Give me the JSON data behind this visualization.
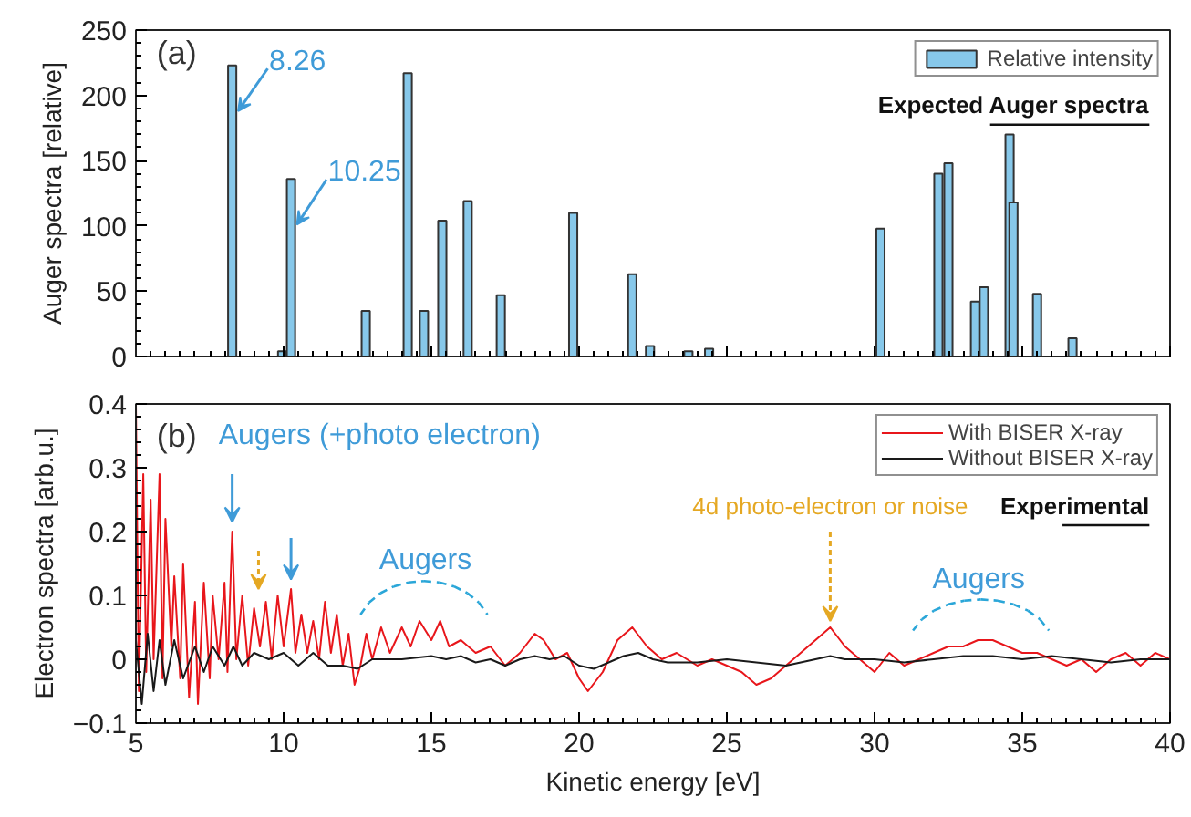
{
  "chart_data": [
    {
      "type": "bar",
      "ylabel": "Auger spectra [relative]",
      "xlim": [
        5,
        40
      ],
      "xticks": [
        5,
        10,
        15,
        20,
        25,
        30,
        35,
        40
      ],
      "ylim": [
        0,
        250
      ],
      "yticks": [
        0,
        50,
        100,
        150,
        200,
        250
      ],
      "tick_labels": "y",
      "legend": "top right",
      "grid": false,
      "x": [
        8.26,
        9.95,
        10.25,
        12.78,
        14.2,
        14.75,
        15.37,
        16.23,
        17.35,
        19.8,
        21.8,
        22.4,
        23.7,
        24.4,
        30.2,
        32.16,
        32.5,
        33.4,
        33.7,
        34.57,
        34.7,
        35.5,
        36.7
      ],
      "series": [
        {
          "name": "Relative intensity",
          "color": "#87c8ea",
          "values": [
            223,
            4,
            136,
            35,
            217,
            35,
            104,
            119,
            47,
            110,
            63,
            8,
            4,
            6,
            98,
            140,
            148,
            42,
            53,
            170,
            118,
            48,
            14
          ]
        }
      ],
      "annotations": [
        "(a)",
        {
          "text": "8.26",
          "x": 8.26,
          "y": 223
        },
        {
          "text": "10.25",
          "x": 10.25,
          "y": 136
        },
        "Expected Auger spectra"
      ]
    },
    {
      "type": "line",
      "xlabel": "Kinetic energy [eV]",
      "ylabel": "Electron spectra [arb.u.]",
      "xlim": [
        5,
        40
      ],
      "xticks": [
        5,
        10,
        15,
        20,
        25,
        30,
        35,
        40
      ],
      "ylim": [
        -0.1,
        0.4
      ],
      "yticks": [
        -0.1,
        0,
        0.1,
        0.2,
        0.3,
        0.4
      ],
      "legend": "top right",
      "grid": false,
      "series": [
        {
          "name": "With BISER X-ray",
          "color": "#e8161b",
          "x": [
            5.0,
            5.1,
            5.25,
            5.35,
            5.5,
            5.6,
            5.8,
            5.9,
            6.0,
            6.2,
            6.3,
            6.5,
            6.6,
            6.8,
            7.0,
            7.1,
            7.3,
            7.5,
            7.6,
            7.8,
            8.0,
            8.1,
            8.26,
            8.4,
            8.6,
            8.8,
            9.0,
            9.2,
            9.4,
            9.6,
            9.8,
            10.0,
            10.25,
            10.4,
            10.6,
            10.8,
            11.0,
            11.2,
            11.4,
            11.6,
            11.8,
            12.0,
            12.2,
            12.4,
            12.6,
            12.8,
            13.0,
            13.3,
            13.6,
            14.0,
            14.3,
            14.6,
            15.0,
            15.3,
            15.6,
            16.0,
            16.5,
            17.0,
            17.5,
            18.0,
            18.5,
            18.8,
            19.2,
            19.6,
            20.0,
            20.3,
            20.8,
            21.3,
            21.8,
            22.3,
            22.8,
            23.3,
            24.0,
            24.5,
            25.0,
            25.5,
            26.0,
            26.5,
            27.0,
            27.5,
            28.0,
            28.5,
            29.0,
            29.5,
            30.0,
            30.5,
            31.0,
            31.5,
            32.0,
            32.5,
            33.0,
            33.5,
            34.0,
            34.5,
            35.0,
            35.5,
            36.0,
            36.5,
            37.0,
            37.5,
            38.0,
            38.5,
            39.0,
            39.5,
            40.0
          ],
          "values": [
            0.4,
            -0.05,
            0.29,
            -0.02,
            0.25,
            0.0,
            0.29,
            -0.03,
            0.22,
            0.02,
            0.13,
            -0.03,
            0.15,
            -0.06,
            0.09,
            -0.07,
            0.12,
            -0.03,
            0.1,
            0.0,
            0.12,
            -0.02,
            0.2,
            0.0,
            0.1,
            -0.01,
            0.08,
            0.02,
            0.09,
            0.0,
            0.1,
            0.02,
            0.11,
            0.01,
            0.07,
            0.01,
            0.06,
            0.0,
            0.09,
            0.01,
            0.07,
            -0.01,
            0.04,
            -0.04,
            -0.01,
            0.04,
            0.0,
            0.05,
            0.01,
            0.05,
            0.02,
            0.06,
            0.03,
            0.06,
            0.02,
            0.03,
            0.01,
            0.02,
            -0.01,
            0.01,
            0.04,
            0.03,
            0.0,
            0.01,
            -0.03,
            -0.05,
            -0.02,
            0.03,
            0.05,
            0.02,
            0.0,
            0.01,
            -0.01,
            0.0,
            -0.01,
            -0.02,
            -0.04,
            -0.03,
            -0.01,
            0.01,
            0.03,
            0.05,
            0.02,
            0.0,
            -0.02,
            0.01,
            -0.01,
            0.0,
            0.01,
            0.02,
            0.02,
            0.03,
            0.03,
            0.02,
            0.01,
            0.01,
            0.0,
            -0.01,
            0.0,
            -0.02,
            0.0,
            0.01,
            -0.01,
            0.01,
            0.0
          ]
        },
        {
          "name": "Without BISER X-ray",
          "color": "#1a1a1a",
          "x": [
            5.0,
            5.2,
            5.4,
            5.6,
            5.8,
            6.0,
            6.3,
            6.6,
            7.0,
            7.3,
            7.6,
            8.0,
            8.3,
            8.6,
            9.0,
            9.5,
            10.0,
            10.5,
            11.0,
            11.5,
            12.0,
            12.5,
            13.0,
            14.0,
            15.0,
            15.5,
            16.0,
            16.5,
            17.0,
            17.5,
            18.0,
            18.5,
            19.0,
            19.5,
            20.0,
            20.5,
            21.0,
            21.5,
            22.0,
            22.5,
            23.0,
            24.0,
            25.0,
            26.0,
            27.0,
            27.5,
            28.0,
            28.5,
            29.0,
            30.0,
            31.0,
            32.0,
            33.0,
            34.0,
            35.0,
            36.0,
            37.0,
            38.0,
            39.0,
            40.0
          ],
          "values": [
            0.03,
            -0.07,
            0.04,
            -0.05,
            0.03,
            -0.04,
            0.03,
            -0.03,
            0.02,
            -0.02,
            0.02,
            -0.01,
            0.02,
            -0.01,
            0.01,
            0.0,
            0.01,
            -0.01,
            0.01,
            -0.01,
            -0.01,
            -0.015,
            0.0,
            0.0,
            0.005,
            0.0,
            0.005,
            -0.005,
            0.0,
            -0.01,
            0.0,
            0.005,
            0.0,
            0.005,
            -0.01,
            -0.015,
            -0.005,
            0.005,
            0.01,
            0.0,
            -0.005,
            -0.005,
            0.0,
            -0.005,
            -0.01,
            -0.005,
            0.0,
            0.005,
            0.0,
            0.0,
            -0.005,
            0.0,
            0.005,
            0.005,
            0.0,
            0.005,
            0.0,
            -0.005,
            0.0,
            0.0
          ]
        }
      ],
      "annotations": [
        "(b)",
        "Augers (+photo electron)",
        "Augers",
        {
          "text": "4d photo-electron or noise",
          "x": 28.5,
          "y": 0.05
        },
        "Augers",
        "Experimental"
      ]
    }
  ]
}
